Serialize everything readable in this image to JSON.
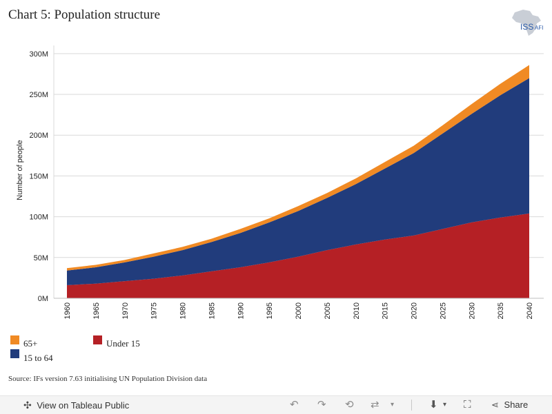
{
  "page": {
    "title": "Chart 5: Population structure",
    "source": "Source: IFs version 7.63 initialising UN Population Division data"
  },
  "logo": {
    "text": "ISS",
    "suffix": "AFI"
  },
  "colors": {
    "under15": "#b52025",
    "age15to64": "#213c7c",
    "age65plus": "#f08a24"
  },
  "legend": [
    {
      "key": "age65plus",
      "label": "65+"
    },
    {
      "key": "under15",
      "label": "Under 15"
    },
    {
      "key": "age15to64",
      "label": "15 to 64"
    }
  ],
  "chart_data": {
    "type": "area",
    "stacked": true,
    "title": "",
    "xlabel": "",
    "ylabel": "Number of people",
    "x": [
      1960,
      1965,
      1970,
      1975,
      1980,
      1985,
      1990,
      1995,
      2000,
      2005,
      2010,
      2015,
      2020,
      2025,
      2030,
      2035,
      2040
    ],
    "x_tick_labels": [
      "1960",
      "1965",
      "1970",
      "1975",
      "1980",
      "1985",
      "1990",
      "1995",
      "2000",
      "2005",
      "2010",
      "2015",
      "2020",
      "2025",
      "2030",
      "2035",
      "2040"
    ],
    "ylim": [
      0,
      310
    ],
    "y_unit": "M",
    "y_ticks": [
      0,
      50,
      100,
      150,
      200,
      250,
      300
    ],
    "y_tick_labels": [
      "0M",
      "50M",
      "100M",
      "150M",
      "200M",
      "250M",
      "300M"
    ],
    "grid": true,
    "series": [
      {
        "name": "Under 15",
        "key": "under15",
        "values": [
          16,
          18,
          21,
          24,
          28,
          33,
          38,
          44,
          51,
          59,
          66,
          72,
          77,
          85,
          93,
          99,
          104
        ]
      },
      {
        "name": "15 to 64",
        "key": "age15to64",
        "values": [
          18,
          20,
          23,
          27,
          31,
          36,
          42,
          49,
          56,
          64,
          74,
          87,
          101,
          117,
          133,
          150,
          166
        ]
      },
      {
        "name": "65+",
        "key": "age65plus",
        "values": [
          3,
          3,
          3,
          4,
          4,
          4,
          5,
          5,
          6,
          6,
          7,
          8,
          9,
          10,
          12,
          14,
          16
        ]
      }
    ]
  },
  "toolbar": {
    "view_label": "View on Tableau Public",
    "share_label": "Share"
  }
}
